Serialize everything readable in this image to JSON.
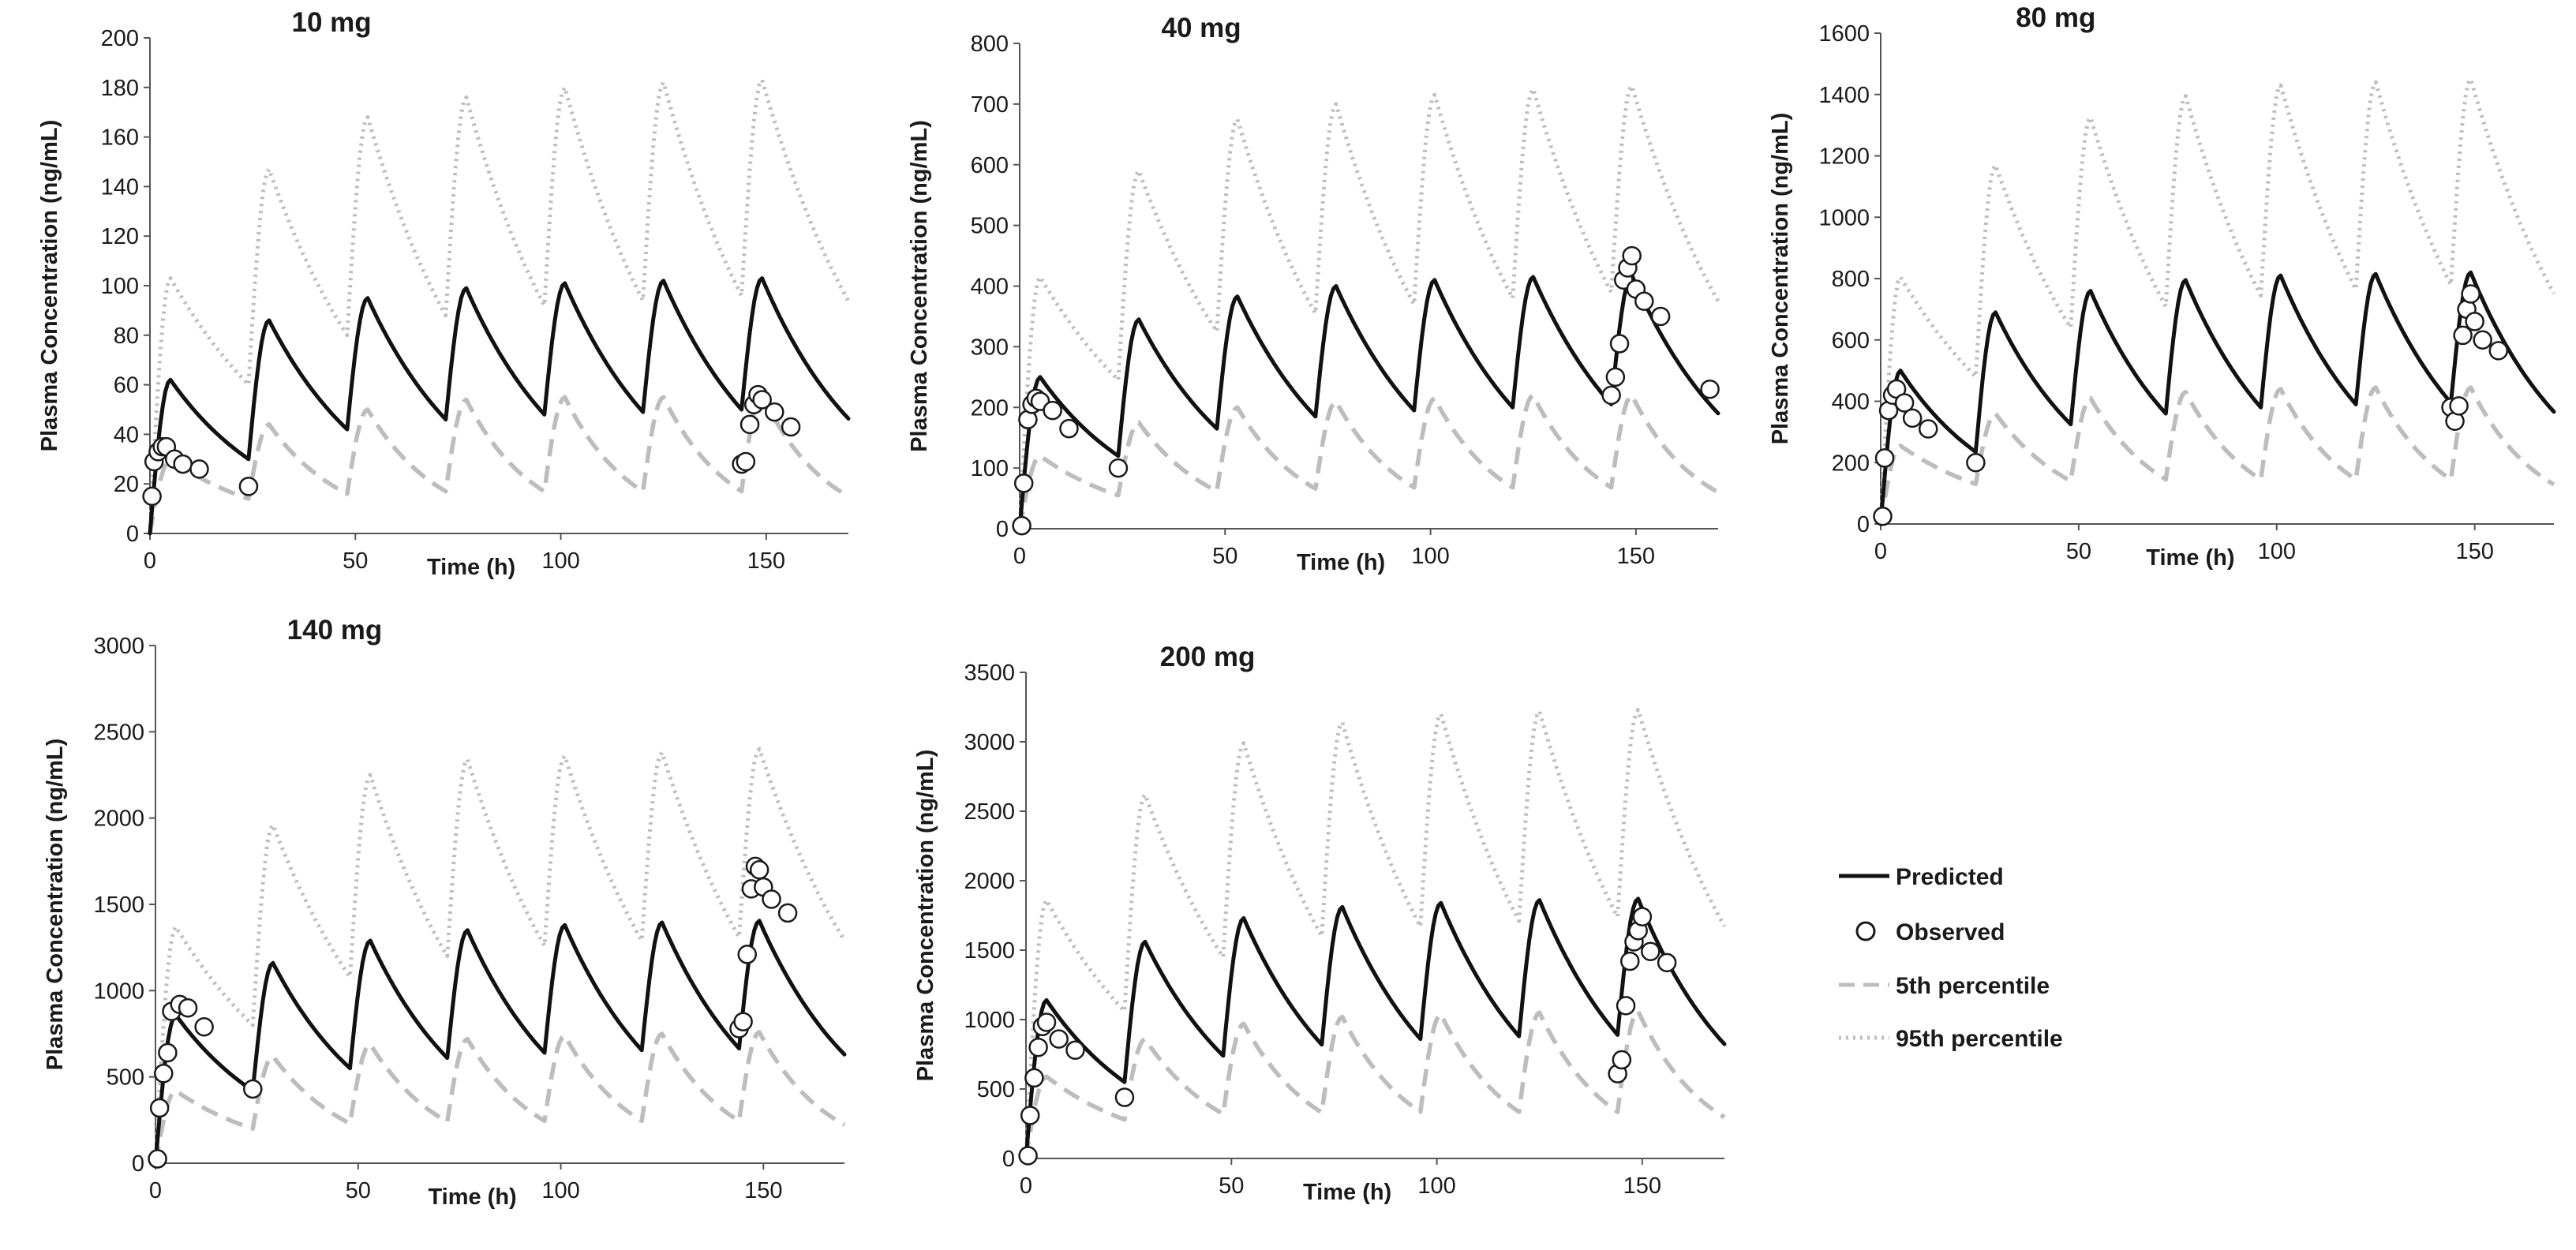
{
  "figure": {
    "legend": {
      "predicted": "Predicted",
      "observed": "Observed",
      "p5": "5th percentile",
      "p95": "95th percentile"
    },
    "colors": {
      "predicted": "#111111",
      "observed_stroke": "#1a1a1a",
      "observed_fill": "#ffffff",
      "p5": "#bdbdbd",
      "p95": "#bdbdbd",
      "axis": "#555555"
    }
  },
  "chart_data": [
    {
      "type": "line",
      "title": "10 mg",
      "xlabel": "Time (h)",
      "ylabel": "Plasma Concentration (ng/mL)",
      "xlim": [
        0,
        170
      ],
      "ylim": [
        0,
        200
      ],
      "xticks": [
        "0",
        "50",
        "100",
        "150"
      ],
      "xtick_values": [
        0,
        50,
        100,
        150
      ],
      "yticks": [
        "0",
        "20",
        "40",
        "60",
        "80",
        "100",
        "120",
        "140",
        "160",
        "180",
        "200"
      ],
      "ytick_values": [
        0,
        20,
        40,
        60,
        80,
        100,
        120,
        140,
        160,
        180,
        200
      ],
      "tau": 24,
      "tmax": 5,
      "series": [
        {
          "name": "Predicted",
          "peaks": [
            62,
            86,
            95,
            99,
            101,
            102,
            103
          ],
          "troughs": [
            30,
            42,
            46,
            48,
            49,
            50,
            50
          ]
        },
        {
          "name": "5th percentile",
          "peaks": [
            30,
            44,
            50,
            54,
            55,
            55,
            56
          ],
          "troughs": [
            14,
            16,
            17,
            17,
            17,
            17,
            17
          ]
        },
        {
          "name": "95th percentile",
          "peaks": [
            103,
            147,
            168,
            176,
            180,
            182,
            183
          ],
          "troughs": [
            60,
            80,
            88,
            92,
            94,
            96,
            100
          ]
        }
      ],
      "observed": [
        [
          0.5,
          15
        ],
        [
          1,
          29
        ],
        [
          2,
          33
        ],
        [
          3,
          35
        ],
        [
          4,
          35
        ],
        [
          6,
          30
        ],
        [
          8,
          28
        ],
        [
          12,
          26
        ],
        [
          24,
          19
        ],
        [
          144,
          28
        ],
        [
          145,
          29
        ],
        [
          146,
          44
        ],
        [
          147,
          52
        ],
        [
          148,
          56
        ],
        [
          149,
          54
        ],
        [
          152,
          49
        ],
        [
          156,
          43
        ]
      ]
    },
    {
      "type": "line",
      "title": "40 mg",
      "xlabel": "Time (h)",
      "ylabel": "Plasma Concentration (ng/mL)",
      "xlim": [
        0,
        170
      ],
      "ylim": [
        0,
        800
      ],
      "xticks": [
        "0",
        "50",
        "100",
        "150"
      ],
      "xtick_values": [
        0,
        50,
        100,
        150
      ],
      "yticks": [
        "0",
        "100",
        "200",
        "300",
        "400",
        "500",
        "600",
        "700",
        "800"
      ],
      "ytick_values": [
        0,
        100,
        200,
        300,
        400,
        500,
        600,
        700,
        800
      ],
      "tau": 24,
      "tmax": 5,
      "series": [
        {
          "name": "Predicted",
          "peaks": [
            250,
            345,
            383,
            400,
            410,
            415,
            418
          ],
          "troughs": [
            120,
            165,
            185,
            195,
            200,
            205,
            205
          ]
        },
        {
          "name": "5th percentile",
          "peaks": [
            120,
            175,
            200,
            210,
            215,
            220,
            220
          ],
          "troughs": [
            55,
            62,
            66,
            68,
            68,
            68,
            68
          ]
        },
        {
          "name": "95th percentile",
          "peaks": [
            415,
            590,
            675,
            700,
            715,
            725,
            730
          ],
          "troughs": [
            245,
            325,
            355,
            370,
            380,
            390,
            400
          ]
        }
      ],
      "observed": [
        [
          0.5,
          5
        ],
        [
          1,
          75
        ],
        [
          2,
          180
        ],
        [
          3,
          205
        ],
        [
          4,
          215
        ],
        [
          5,
          210
        ],
        [
          8,
          195
        ],
        [
          12,
          165
        ],
        [
          24,
          100
        ],
        [
          144,
          220
        ],
        [
          145,
          250
        ],
        [
          146,
          305
        ],
        [
          147,
          410
        ],
        [
          148,
          430
        ],
        [
          149,
          450
        ],
        [
          150,
          395
        ],
        [
          152,
          375
        ],
        [
          156,
          350
        ],
        [
          168,
          230
        ]
      ]
    },
    {
      "type": "line",
      "title": "80 mg",
      "xlabel": "Time (h)",
      "ylabel": "Plasma Concentration (ng/mL)",
      "xlim": [
        0,
        170
      ],
      "ylim": [
        0,
        1600
      ],
      "xticks": [
        "0",
        "50",
        "100",
        "150"
      ],
      "xtick_values": [
        0,
        50,
        100,
        150
      ],
      "yticks": [
        "0",
        "200",
        "400",
        "600",
        "800",
        "1000",
        "1200",
        "1400",
        "1600"
      ],
      "ytick_values": [
        0,
        200,
        400,
        600,
        800,
        1000,
        1200,
        1400,
        1600
      ],
      "tau": 24,
      "tmax": 5,
      "series": [
        {
          "name": "Predicted",
          "peaks": [
            500,
            690,
            760,
            795,
            810,
            815,
            820
          ],
          "troughs": [
            235,
            325,
            360,
            380,
            390,
            395,
            395
          ]
        },
        {
          "name": "5th percentile",
          "peaks": [
            255,
            360,
            410,
            430,
            440,
            445,
            445
          ],
          "troughs": [
            130,
            140,
            145,
            145,
            145,
            145,
            145
          ]
        },
        {
          "name": "95th percentile",
          "peaks": [
            805,
            1170,
            1325,
            1395,
            1430,
            1440,
            1450
          ],
          "troughs": [
            480,
            640,
            710,
            745,
            765,
            780,
            800
          ]
        }
      ],
      "observed": [
        [
          0.5,
          25
        ],
        [
          1,
          215
        ],
        [
          2,
          370
        ],
        [
          3,
          420
        ],
        [
          4,
          440
        ],
        [
          6,
          395
        ],
        [
          8,
          345
        ],
        [
          12,
          310
        ],
        [
          24,
          200
        ],
        [
          144,
          380
        ],
        [
          145,
          335
        ],
        [
          146,
          385
        ],
        [
          147,
          615
        ],
        [
          148,
          700
        ],
        [
          149,
          750
        ],
        [
          150,
          660
        ],
        [
          152,
          600
        ],
        [
          156,
          565
        ]
      ]
    },
    {
      "type": "line",
      "title": "140 mg",
      "xlabel": "Time (h)",
      "ylabel": "Plasma Concentration (ng/mL)",
      "xlim": [
        0,
        170
      ],
      "ylim": [
        0,
        3000
      ],
      "xticks": [
        "0",
        "50",
        "100",
        "150"
      ],
      "xtick_values": [
        0,
        50,
        100,
        150
      ],
      "yticks": [
        "0",
        "500",
        "1000",
        "1500",
        "2000",
        "2500",
        "3000"
      ],
      "ytick_values": [
        0,
        500,
        1000,
        1500,
        2000,
        2500,
        3000
      ],
      "tau": 24,
      "tmax": 5,
      "series": [
        {
          "name": "Predicted",
          "peaks": [
            860,
            1160,
            1290,
            1350,
            1380,
            1395,
            1405
          ],
          "troughs": [
            420,
            550,
            610,
            640,
            655,
            665,
            680
          ]
        },
        {
          "name": "5th percentile",
          "peaks": [
            420,
            620,
            690,
            720,
            740,
            750,
            760
          ],
          "troughs": [
            200,
            230,
            240,
            245,
            245,
            245,
            250
          ]
        },
        {
          "name": "95th percentile",
          "peaks": [
            1370,
            1960,
            2250,
            2340,
            2360,
            2380,
            2400
          ],
          "troughs": [
            800,
            1080,
            1200,
            1260,
            1290,
            1310,
            1370
          ]
        }
      ],
      "observed": [
        [
          0.5,
          25
        ],
        [
          1,
          320
        ],
        [
          2,
          520
        ],
        [
          3,
          640
        ],
        [
          4,
          880
        ],
        [
          6,
          920
        ],
        [
          8,
          900
        ],
        [
          12,
          790
        ],
        [
          24,
          430
        ],
        [
          144,
          780
        ],
        [
          145,
          820
        ],
        [
          146,
          1210
        ],
        [
          147,
          1590
        ],
        [
          148,
          1720
        ],
        [
          149,
          1700
        ],
        [
          150,
          1600
        ],
        [
          152,
          1530
        ],
        [
          156,
          1450
        ]
      ]
    },
    {
      "type": "line",
      "title": "200 mg",
      "xlabel": "Time (h)",
      "ylabel": "Plasma Concentration (ng/mL)",
      "xlim": [
        0,
        170
      ],
      "ylim": [
        0,
        3500
      ],
      "xticks": [
        "0",
        "50",
        "100",
        "150"
      ],
      "xtick_values": [
        0,
        50,
        100,
        150
      ],
      "yticks": [
        "0",
        "500",
        "1000",
        "1500",
        "2000",
        "2500",
        "3000",
        "3500"
      ],
      "ytick_values": [
        0,
        500,
        1000,
        1500,
        2000,
        2500,
        3000,
        3500
      ],
      "tau": 24,
      "tmax": 5,
      "series": [
        {
          "name": "Predicted",
          "peaks": [
            1140,
            1560,
            1730,
            1810,
            1840,
            1860,
            1870
          ],
          "troughs": [
            550,
            740,
            820,
            860,
            880,
            890,
            890
          ]
        },
        {
          "name": "5th percentile",
          "peaks": [
            590,
            860,
            970,
            1020,
            1040,
            1050,
            1060
          ],
          "troughs": [
            280,
            320,
            330,
            335,
            335,
            335,
            335
          ]
        },
        {
          "name": "95th percentile",
          "peaks": [
            1860,
            2620,
            2990,
            3140,
            3200,
            3220,
            3230
          ],
          "troughs": [
            1060,
            1450,
            1600,
            1670,
            1710,
            1740,
            1780
          ]
        }
      ],
      "observed": [
        [
          0.5,
          20
        ],
        [
          1,
          310
        ],
        [
          2,
          580
        ],
        [
          3,
          800
        ],
        [
          4,
          950
        ],
        [
          5,
          980
        ],
        [
          8,
          860
        ],
        [
          12,
          780
        ],
        [
          24,
          440
        ],
        [
          144,
          610
        ],
        [
          145,
          710
        ],
        [
          146,
          1100
        ],
        [
          147,
          1420
        ],
        [
          148,
          1560
        ],
        [
          149,
          1640
        ],
        [
          150,
          1740
        ],
        [
          152,
          1490
        ],
        [
          156,
          1410
        ]
      ]
    }
  ]
}
